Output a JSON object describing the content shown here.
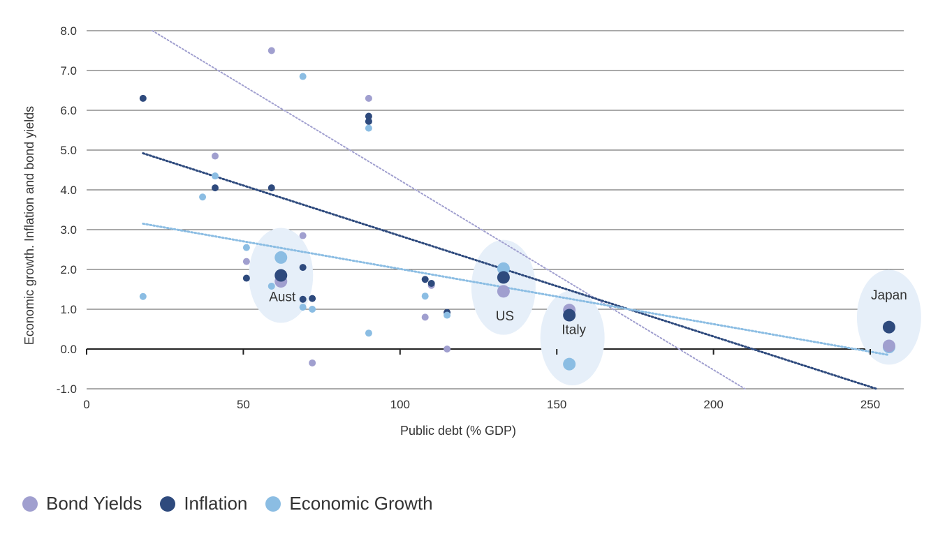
{
  "chart_data": {
    "type": "scatter",
    "title": "",
    "xlabel": "Public debt (% GDP)",
    "ylabel": "Economic growth. Inflation and bond yields",
    "xlim": [
      0,
      260
    ],
    "ylim": [
      -1.0,
      8.0
    ],
    "x_ticks": [
      0,
      50,
      100,
      150,
      200,
      250
    ],
    "y_ticks": [
      -1.0,
      0.0,
      1.0,
      2.0,
      3.0,
      4.0,
      5.0,
      6.0,
      7.0,
      8.0
    ],
    "y_tick_labels": [
      "-1.0",
      "0.0",
      "1.0",
      "2.0",
      "3.0",
      "4.0",
      "5.0",
      "6.0",
      "7.0",
      "8.0"
    ],
    "grid": "horizontal",
    "legend_position": "bottom-left",
    "series": [
      {
        "name": "Bond Yields",
        "color": "#a09fcf",
        "points": [
          [
            41,
            4.85
          ],
          [
            51,
            2.2
          ],
          [
            59,
            7.5
          ],
          [
            69,
            2.85
          ],
          [
            72,
            -0.35
          ],
          [
            90,
            6.3
          ],
          [
            108,
            0.8
          ],
          [
            110,
            1.6
          ],
          [
            115,
            0.0
          ]
        ],
        "highlight_points": [
          [
            62,
            1.7
          ],
          [
            133,
            1.45
          ],
          [
            154,
            0.98
          ],
          [
            256,
            0.08
          ]
        ],
        "trend": [
          [
            21,
            8.0
          ],
          [
            210,
            -1.0
          ]
        ]
      },
      {
        "name": "Inflation",
        "color": "#2e4a7d",
        "points": [
          [
            18,
            6.3
          ],
          [
            41,
            4.05
          ],
          [
            51,
            1.78
          ],
          [
            59,
            4.05
          ],
          [
            69,
            2.05
          ],
          [
            69,
            1.25
          ],
          [
            72,
            1.27
          ],
          [
            90,
            5.85
          ],
          [
            90,
            5.72
          ],
          [
            108,
            1.75
          ],
          [
            110,
            1.65
          ],
          [
            115,
            0.92
          ]
        ],
        "highlight_points": [
          [
            62,
            1.85
          ],
          [
            133,
            1.8
          ],
          [
            154,
            0.85
          ],
          [
            256,
            0.55
          ]
        ],
        "trend": [
          [
            18,
            4.92
          ],
          [
            252,
            -1.0
          ]
        ]
      },
      {
        "name": "Economic Growth",
        "color": "#8bbde3",
        "points": [
          [
            18,
            1.32
          ],
          [
            37,
            3.82
          ],
          [
            41,
            4.35
          ],
          [
            51,
            2.55
          ],
          [
            59,
            1.58
          ],
          [
            69,
            6.85
          ],
          [
            69,
            1.05
          ],
          [
            72,
            1.0
          ],
          [
            90,
            5.55
          ],
          [
            90,
            0.4
          ],
          [
            108,
            1.33
          ],
          [
            115,
            0.85
          ]
        ],
        "highlight_points": [
          [
            62,
            2.3
          ],
          [
            133,
            2.02
          ],
          [
            154,
            -0.38
          ],
          [
            256,
            0.05
          ]
        ],
        "trend": [
          [
            18,
            3.15
          ],
          [
            256,
            -0.15
          ]
        ]
      }
    ],
    "highlights": [
      {
        "label": "Aust",
        "x": 62,
        "y": 1.85,
        "label_y": 1.2
      },
      {
        "label": "US",
        "x": 133,
        "y": 1.55,
        "label_y": 0.72
      },
      {
        "label": "Italy",
        "x": 155,
        "y": 0.28,
        "label_y": 0.38
      },
      {
        "label": "Japan",
        "x": 256,
        "y": 0.8,
        "label_y": 1.25
      }
    ]
  }
}
